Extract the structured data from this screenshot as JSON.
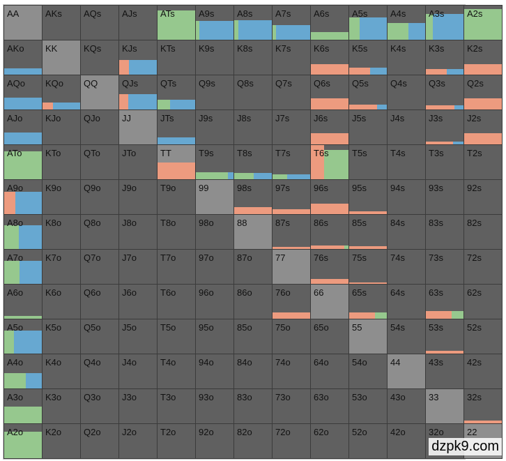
{
  "colors": {
    "green": "#96c88e",
    "blue": "#67a8d1",
    "orange": "#ed9b7f",
    "pair_bg": "#8e8e8e",
    "cell_bg": "#606060",
    "border": "#3b3b3b"
  },
  "ranks": [
    "A",
    "K",
    "Q",
    "J",
    "T",
    "9",
    "8",
    "7",
    "6",
    "5",
    "4",
    "3",
    "2"
  ],
  "highlights": {
    "AKs": "#ffffff"
  },
  "watermark": "dzpk9.com",
  "mixes": {
    "ATs": [
      [
        "green",
        1.0,
        0.85
      ]
    ],
    "A9s": [
      [
        "green",
        0.1,
        0.55
      ],
      [
        "blue",
        0.9,
        0.55
      ]
    ],
    "A8s": [
      [
        "green",
        0.12,
        0.58
      ],
      [
        "blue",
        0.88,
        0.58
      ]
    ],
    "A7s": [
      [
        "green",
        0.1,
        0.42
      ],
      [
        "blue",
        0.9,
        0.42
      ]
    ],
    "A6s": [
      [
        "green",
        1.0,
        0.22
      ]
    ],
    "A5s": [
      [
        "green",
        0.28,
        0.65
      ],
      [
        "blue",
        0.72,
        0.65
      ]
    ],
    "A4s": [
      [
        "green",
        0.56,
        0.5
      ],
      [
        "blue",
        0.44,
        0.5
      ]
    ],
    "A3s": [
      [
        "green",
        0.18,
        0.75
      ],
      [
        "blue",
        0.82,
        0.75
      ]
    ],
    "A2s": [
      [
        "green",
        1.0,
        0.9
      ]
    ],
    "AKo": [
      [
        "blue",
        1.0,
        0.18
      ]
    ],
    "K6s": [
      [
        "orange",
        1.0,
        0.3
      ]
    ],
    "K5s": [
      [
        "orange",
        0.55,
        0.2
      ],
      [
        "blue",
        0.45,
        0.2
      ]
    ],
    "K3s": [
      [
        "orange",
        0.56,
        0.16
      ],
      [
        "blue",
        0.44,
        0.16
      ]
    ],
    "K2s": [
      [
        "orange",
        1.0,
        0.3
      ]
    ],
    "KJs": [
      [
        "orange",
        0.26,
        0.42
      ],
      [
        "blue",
        0.74,
        0.42
      ]
    ],
    "AQo": [
      [
        "blue",
        1.0,
        0.35
      ]
    ],
    "KQo": [
      [
        "orange",
        0.28,
        0.2
      ],
      [
        "blue",
        0.72,
        0.2
      ]
    ],
    "QJs": [
      [
        "orange",
        0.24,
        0.45
      ],
      [
        "blue",
        0.76,
        0.45
      ]
    ],
    "QTs": [
      [
        "green",
        0.34,
        0.28
      ],
      [
        "blue",
        0.66,
        0.28
      ]
    ],
    "Q6s": [
      [
        "orange",
        1.0,
        0.32
      ]
    ],
    "Q5s": [
      [
        "orange",
        0.74,
        0.14
      ],
      [
        "blue",
        0.26,
        0.14
      ]
    ],
    "Q3s": [
      [
        "orange",
        0.76,
        0.12
      ],
      [
        "blue",
        0.24,
        0.12
      ]
    ],
    "Q2s": [
      [
        "orange",
        1.0,
        0.32
      ]
    ],
    "AJo": [
      [
        "blue",
        1.0,
        0.35
      ]
    ],
    "JTs": [
      [
        "blue",
        1.0,
        0.2
      ]
    ],
    "J6s": [
      [
        "orange",
        1.0,
        0.32
      ]
    ],
    "J3s": [
      [
        "orange",
        0.72,
        0.08
      ],
      [
        "blue",
        0.28,
        0.08
      ]
    ],
    "J2s": [
      [
        "orange",
        1.0,
        0.32
      ]
    ],
    "ATo": [
      [
        "green",
        1.0,
        0.82
      ]
    ],
    "TT": [
      [
        "orange",
        1.0,
        0.48
      ]
    ],
    "T9s": [
      [
        "green",
        0.86,
        0.2
      ],
      [
        "blue",
        0.14,
        0.2
      ]
    ],
    "T8s": [
      [
        "green",
        0.52,
        0.18
      ],
      [
        "blue",
        0.48,
        0.18
      ]
    ],
    "T7s": [
      [
        "green",
        0.38,
        0.14
      ],
      [
        "blue",
        0.62,
        0.14
      ]
    ],
    "T6s": [
      [
        "orange",
        0.36,
        1.0
      ],
      [
        "green",
        0.64,
        0.85
      ]
    ],
    "A9o": [
      [
        "orange",
        0.3,
        0.65
      ],
      [
        "blue",
        0.7,
        0.65
      ]
    ],
    "98s": [
      [
        "orange",
        1.0,
        0.2
      ]
    ],
    "97s": [
      [
        "orange",
        1.0,
        0.15
      ]
    ],
    "96s": [
      [
        "orange",
        1.0,
        0.3
      ]
    ],
    "95s": [
      [
        "orange",
        1.0,
        0.08
      ]
    ],
    "A8o": [
      [
        "green",
        0.38,
        0.7
      ],
      [
        "blue",
        0.62,
        0.7
      ]
    ],
    "87s": [
      [
        "orange",
        1.0,
        0.06
      ]
    ],
    "86s": [
      [
        "orange",
        0.88,
        0.1
      ],
      [
        "green",
        0.12,
        0.1
      ]
    ],
    "85s": [
      [
        "orange",
        1.0,
        0.08
      ]
    ],
    "A7o": [
      [
        "green",
        0.4,
        0.68
      ],
      [
        "blue",
        0.6,
        0.68
      ]
    ],
    "76s": [
      [
        "orange",
        1.0,
        0.15
      ]
    ],
    "75s": [
      [
        "orange",
        1.0,
        0.04
      ]
    ],
    "A6o": [
      [
        "green",
        1.0,
        0.08
      ]
    ],
    "76o": [
      [
        "orange",
        1.0,
        0.18
      ]
    ],
    "65s": [
      [
        "orange",
        0.68,
        0.18
      ],
      [
        "green",
        0.32,
        0.18
      ]
    ],
    "63s": [
      [
        "orange",
        0.68,
        0.22
      ],
      [
        "green",
        0.32,
        0.22
      ]
    ],
    "A5o": [
      [
        "green",
        0.26,
        0.68
      ],
      [
        "blue",
        0.74,
        0.68
      ]
    ],
    "53s": [
      [
        "orange",
        1.0,
        0.08
      ]
    ],
    "A4o": [
      [
        "green",
        0.58,
        0.45
      ],
      [
        "blue",
        0.42,
        0.45
      ]
    ],
    "A3o": [
      [
        "green",
        1.0,
        0.5
      ]
    ],
    "32s": [
      [
        "orange",
        1.0,
        0.08
      ]
    ],
    "A2o": [
      [
        "green",
        1.0,
        0.78
      ]
    ]
  }
}
